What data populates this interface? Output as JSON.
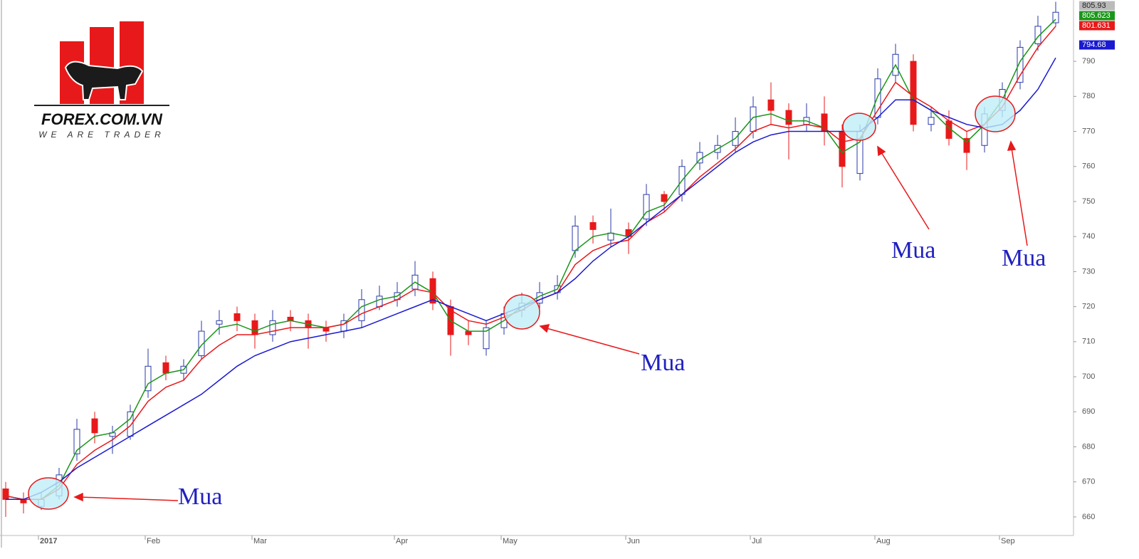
{
  "logo": {
    "title": "FOREX.COM.VN",
    "slogan": "WE ARE TRADER"
  },
  "chart_data": {
    "type": "candlestick",
    "categories": [
      null,
      null,
      "2017",
      null,
      null,
      null,
      null,
      null,
      "Feb",
      null,
      null,
      null,
      null,
      null,
      "Mar",
      null,
      null,
      null,
      null,
      null,
      null,
      null,
      "Apr",
      null,
      null,
      null,
      null,
      null,
      "May",
      null,
      null,
      null,
      null,
      null,
      null,
      "Jun",
      null,
      null,
      null,
      null,
      null,
      null,
      "Jul",
      null,
      null,
      null,
      null,
      null,
      null,
      "Aug",
      null,
      null,
      null,
      null,
      null,
      null,
      "Sep",
      null,
      null,
      null
    ],
    "open": [
      668,
      665,
      663,
      666,
      678,
      688,
      683,
      683,
      696,
      704,
      701,
      706,
      715,
      718,
      716,
      712,
      717,
      716,
      714,
      713,
      716,
      720,
      722,
      725,
      728,
      720,
      713,
      708,
      714,
      719,
      721,
      724,
      736,
      744,
      739,
      742,
      745,
      752,
      752,
      761,
      764,
      766,
      770,
      779,
      776,
      772,
      775,
      770,
      758,
      774,
      786,
      790,
      772,
      773,
      768,
      766,
      776,
      784,
      795,
      801
    ],
    "high": [
      670,
      667,
      667,
      674,
      688,
      690,
      686,
      692,
      708,
      706,
      705,
      716,
      719,
      720,
      718,
      719,
      719,
      718,
      716,
      718,
      725,
      726,
      727,
      733,
      730,
      722,
      716,
      716,
      720,
      724,
      727,
      729,
      746,
      746,
      748,
      744,
      755,
      753,
      762,
      767,
      769,
      774,
      780,
      784,
      778,
      778,
      780,
      772,
      772,
      788,
      795,
      792,
      777,
      776,
      770,
      777,
      784,
      796,
      803,
      807
    ],
    "low": [
      660,
      661,
      662,
      665,
      676,
      681,
      678,
      682,
      694,
      699,
      699,
      705,
      712,
      713,
      708,
      710,
      713,
      708,
      710,
      711,
      714,
      719,
      720,
      723,
      719,
      706,
      709,
      706,
      712,
      717,
      719,
      722,
      734,
      738,
      737,
      735,
      743,
      747,
      750,
      759,
      762,
      764,
      768,
      772,
      762,
      770,
      766,
      754,
      756,
      772,
      784,
      770,
      770,
      766,
      759,
      764,
      774,
      782,
      793,
      800
    ],
    "close": [
      665,
      664,
      665,
      672,
      685,
      684,
      684,
      690,
      703,
      701,
      703,
      713,
      716,
      716,
      712,
      716,
      716,
      714,
      713,
      716,
      722,
      723,
      724,
      729,
      721,
      712,
      712,
      714,
      718,
      721,
      724,
      726,
      743,
      742,
      741,
      740,
      752,
      750,
      760,
      764,
      766,
      770,
      777,
      776,
      772,
      774,
      770,
      760,
      770,
      785,
      792,
      772,
      774,
      768,
      764,
      775,
      782,
      794,
      800,
      804
    ],
    "up_color": "#2a3aa8",
    "down_color": "#e8191a",
    "series": [
      {
        "color": "#1a961a",
        "values": [
          666,
          665,
          665,
          669,
          679,
          683,
          684,
          688,
          698,
          701,
          702,
          709,
          714,
          715,
          713,
          715,
          716,
          715,
          714,
          715,
          720,
          722,
          723,
          727,
          724,
          716,
          713,
          713,
          716,
          720,
          723,
          725,
          736,
          740,
          741,
          740,
          747,
          749,
          756,
          762,
          765,
          768,
          774,
          775,
          773,
          773,
          771,
          764,
          767,
          780,
          789,
          779,
          776,
          771,
          767,
          772,
          779,
          790,
          797,
          802
        ]
      },
      {
        "color": "#e8191a",
        "values": [
          666,
          665,
          665,
          668,
          675,
          679,
          682,
          686,
          693,
          697,
          699,
          705,
          709,
          712,
          712,
          713,
          714,
          714,
          714,
          715,
          718,
          720,
          722,
          725,
          724,
          719,
          716,
          715,
          717,
          719,
          722,
          724,
          732,
          736,
          738,
          739,
          744,
          747,
          752,
          757,
          761,
          765,
          770,
          772,
          771,
          772,
          771,
          767,
          768,
          776,
          784,
          780,
          777,
          773,
          770,
          772,
          777,
          786,
          794,
          800
        ]
      },
      {
        "color": "#1a1ad0",
        "values": [
          665,
          665,
          667,
          670,
          674,
          677,
          680,
          683,
          686,
          689,
          692,
          695,
          699,
          703,
          706,
          708,
          710,
          711,
          712,
          713,
          714,
          716,
          718,
          720,
          722,
          720,
          718,
          716,
          718,
          720,
          722,
          724,
          728,
          733,
          737,
          740,
          744,
          748,
          752,
          756,
          760,
          764,
          767,
          769,
          770,
          770,
          770,
          770,
          770,
          774,
          779,
          779,
          776,
          774,
          772,
          771,
          772,
          776,
          782,
          791
        ]
      }
    ],
    "price_tags": [
      {
        "value": 805.93,
        "label": "805.93",
        "color": "#bbbbbb"
      },
      {
        "value": 805.623,
        "label": "805.623",
        "color": "#1a961a"
      },
      {
        "value": 801.631,
        "label": "801.631",
        "color": "#e8191a"
      },
      {
        "value": 794.68,
        "label": "794.68",
        "color": "#1a1ad0"
      }
    ],
    "ylim": [
      654.7,
      807.5
    ],
    "yticks": [
      660,
      670,
      680,
      690,
      700,
      710,
      720,
      730,
      740,
      750,
      760,
      770,
      780,
      790
    ],
    "annotations": [
      "Mua",
      "Mua",
      "Mua",
      "Mua"
    ]
  }
}
